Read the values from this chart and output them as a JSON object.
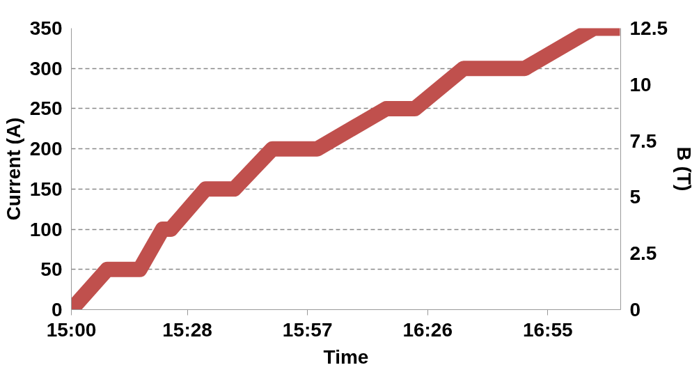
{
  "chart_data": {
    "type": "line",
    "xlabel": "Time",
    "ylabel": "Current (A)",
    "y2label": "B (T)",
    "x": [
      15.0,
      15.144,
      15.275,
      15.367,
      15.4,
      15.54,
      15.655,
      15.809,
      15.989,
      16.267,
      16.382,
      16.578,
      16.824,
      17.102,
      17.207
    ],
    "series": [
      {
        "color": "#c0504d",
        "values": [
          0,
          50,
          50,
          100,
          100,
          150,
          150,
          200,
          200,
          250,
          250,
          300,
          300,
          350,
          350
        ]
      }
    ],
    "xlim": [
      15.0,
      17.21
    ],
    "xticks": [
      {
        "value": 15.0,
        "label": "15:00"
      },
      {
        "value": 15.4667,
        "label": "15:28"
      },
      {
        "value": 15.95,
        "label": "15:57"
      },
      {
        "value": 16.4333,
        "label": "16:26"
      },
      {
        "value": 16.9167,
        "label": "16:55"
      }
    ],
    "ylim": [
      0,
      350
    ],
    "yticks": [
      0,
      50,
      100,
      150,
      200,
      250,
      300,
      350
    ],
    "y2lim": [
      0,
      12.5
    ],
    "y2ticks": [
      0,
      2.5,
      5,
      7.5,
      10,
      12.5
    ],
    "grid": "y",
    "line_style": "solid",
    "marker": "none"
  }
}
